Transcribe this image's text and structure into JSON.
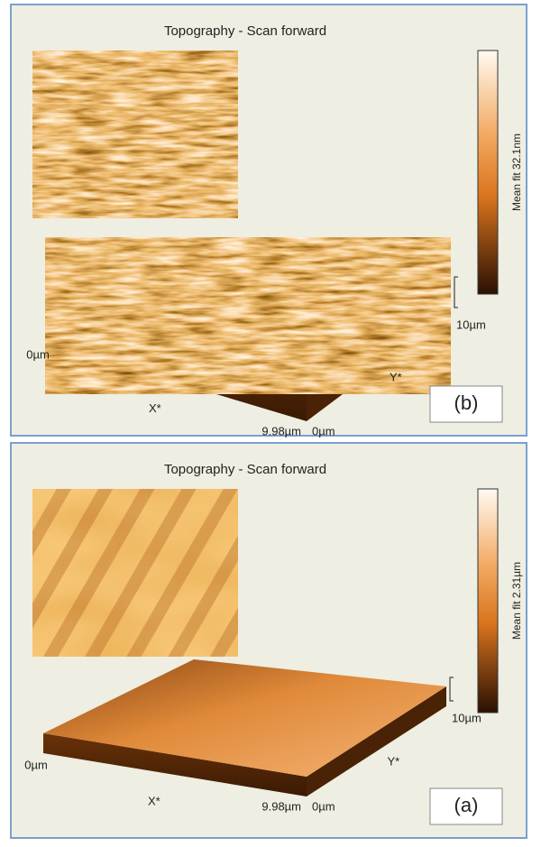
{
  "panels": [
    {
      "title": "Topography - Scan forward",
      "colorbar_label": "Mean fit 32.1nm",
      "x_start": "0µm",
      "x_axis": "X*",
      "x_end": "9.98µm",
      "y_start": "0µm",
      "y_axis": "Y*",
      "y_end": "10µm",
      "label": "(b)"
    },
    {
      "title": "Topography - Scan forward",
      "colorbar_label": "Mean fit 2.31µm",
      "x_start": "0µm",
      "x_axis": "X*",
      "x_end": "9.98µm",
      "y_start": "0µm",
      "y_axis": "Y*",
      "y_end": "10µm",
      "label": "(a)"
    }
  ]
}
